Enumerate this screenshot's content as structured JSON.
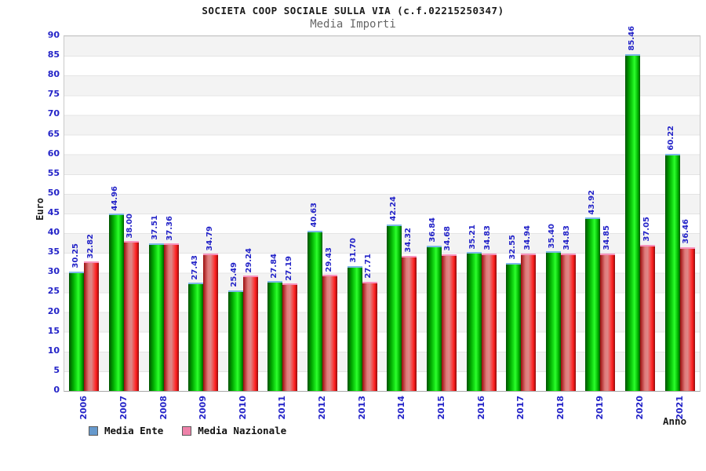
{
  "header": {
    "title": "SOCIETA COOP SOCIALE SULLA VIA (c.f.02215250347)",
    "subtitle": "Media Importi"
  },
  "axes": {
    "y_label": "Euro",
    "x_label": "Anno",
    "y_min": 0,
    "y_max": 90,
    "y_step": 5
  },
  "legend": [
    {
      "label": "Media Ente",
      "swatch_color": "#6699cc"
    },
    {
      "label": "Media Nazionale",
      "swatch_color": "#ee82a9"
    }
  ],
  "colors": {
    "label_blue": "#2424c8",
    "bar_green_mid": "#1ded1d",
    "bar_red_mid": "#ff2020",
    "cap_green": "#7fb8e8",
    "cap_red": "#f793bd",
    "band_gray": "#f3f3f3"
  },
  "chart_data": {
    "type": "bar",
    "title": "SOCIETA COOP SOCIALE SULLA VIA (c.f.02215250347)",
    "subtitle": "Media Importi",
    "xlabel": "Anno",
    "ylabel": "Euro",
    "ylim": [
      0,
      90
    ],
    "ytick_step": 5,
    "grid": "horizontal-bands",
    "legend_position": "bottom",
    "categories": [
      "2006",
      "2007",
      "2008",
      "2009",
      "2010",
      "2011",
      "2012",
      "2013",
      "2014",
      "2015",
      "2016",
      "2017",
      "2018",
      "2019",
      "2020",
      "2021"
    ],
    "series": [
      {
        "name": "Media Ente",
        "values": [
          30.25,
          44.96,
          37.51,
          27.43,
          25.49,
          27.84,
          40.63,
          31.7,
          42.24,
          36.84,
          35.21,
          32.55,
          35.4,
          43.92,
          85.46,
          60.22
        ]
      },
      {
        "name": "Media Nazionale",
        "values": [
          32.82,
          38.0,
          37.36,
          34.79,
          29.24,
          27.19,
          29.43,
          27.71,
          34.32,
          34.68,
          34.83,
          34.94,
          34.83,
          34.85,
          37.05,
          36.46
        ]
      }
    ]
  }
}
